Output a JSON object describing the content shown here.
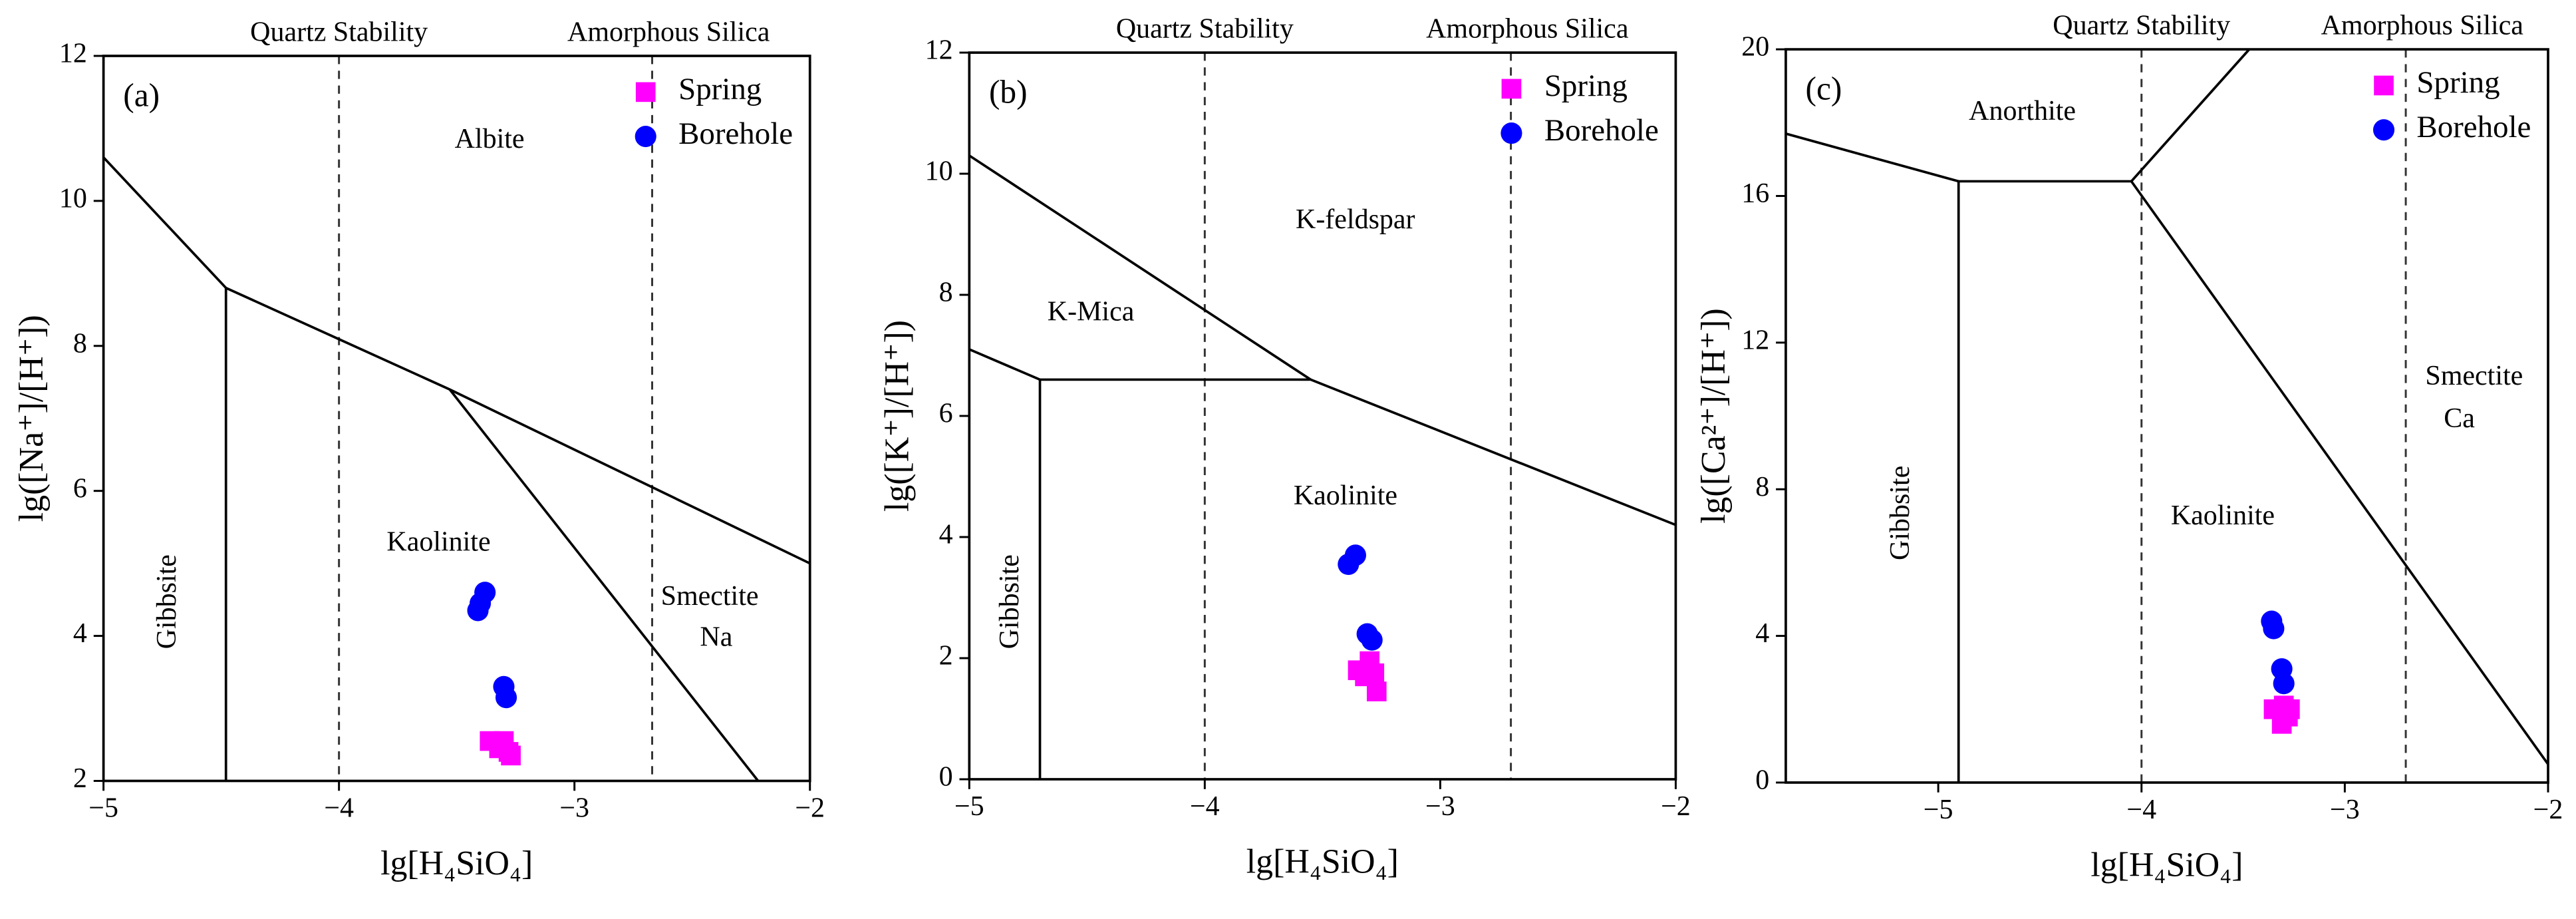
{
  "chart_data": [
    {
      "type": "scatter",
      "panel_label": "(a)",
      "xlabel": "lg[H₄SiO₄]",
      "ylabel": "lg([Na⁺]/[H⁺])",
      "xlim": [
        -5,
        -2
      ],
      "ylim": [
        2,
        12
      ],
      "xticks": [
        {
          "value": -5,
          "label": "−5"
        },
        {
          "value": -4,
          "label": "−4"
        },
        {
          "value": -3,
          "label": "−3"
        },
        {
          "value": -2,
          "label": "−2"
        }
      ],
      "yticks": [
        2,
        4,
        6,
        8,
        10,
        12
      ],
      "reference_lines": [
        {
          "x": -4,
          "label": "Quartz Stability"
        },
        {
          "x": -2.67,
          "label": "Amorphous Silica"
        }
      ],
      "boundaries": [
        {
          "x": [
            -4.48,
            -4.48
          ],
          "y": [
            2,
            8.8
          ]
        },
        {
          "x": [
            -5,
            -4.48
          ],
          "y": [
            10.6,
            8.8
          ]
        },
        {
          "x": [
            -4.48,
            -3.53,
            -2
          ],
          "y": [
            8.8,
            7.4,
            5.0
          ]
        },
        {
          "x": [
            -3.53,
            -2.22
          ],
          "y": [
            7.4,
            2
          ]
        }
      ],
      "region_labels": [
        "Albite",
        "Kaolinite",
        "Gibbsite",
        "Smectite",
        "Na"
      ],
      "legend": "upper right",
      "series": [
        {
          "name": "Spring",
          "color": "#ff00ff",
          "marker": "square",
          "x": [
            -3.36,
            -3.3,
            -3.32,
            -3.28,
            -3.27
          ],
          "y": [
            2.55,
            2.55,
            2.45,
            2.4,
            2.35
          ]
        },
        {
          "name": "Borehole",
          "color": "#0000ff",
          "marker": "circle",
          "x": [
            -3.38,
            -3.4,
            -3.41,
            -3.3,
            -3.29
          ],
          "y": [
            4.6,
            4.45,
            4.35,
            3.3,
            3.15
          ]
        }
      ]
    },
    {
      "type": "scatter",
      "panel_label": "(b)",
      "xlabel": "lg[H₄SiO₄]",
      "ylabel": "lg([K⁺]/[H⁺])",
      "xlim": [
        -5,
        -2
      ],
      "ylim": [
        0,
        12
      ],
      "xticks": [
        {
          "value": -5,
          "label": "−5"
        },
        {
          "value": -4,
          "label": "−4"
        },
        {
          "value": -3,
          "label": "−3"
        },
        {
          "value": -2,
          "label": "−2"
        }
      ],
      "yticks": [
        0,
        2,
        4,
        6,
        8,
        10,
        12
      ],
      "reference_lines": [
        {
          "x": -4,
          "label": "Quartz Stability"
        },
        {
          "x": -2.7,
          "label": "Amorphous Silica"
        }
      ],
      "boundaries": [
        {
          "x": [
            -4.7,
            -4.7
          ],
          "y": [
            0,
            6.6
          ]
        },
        {
          "x": [
            -5,
            -4.7
          ],
          "y": [
            7.1,
            6.6
          ]
        },
        {
          "x": [
            -4.7,
            -3.55,
            -2
          ],
          "y": [
            6.6,
            6.6,
            4.2
          ]
        },
        {
          "x": [
            -5,
            -3.55
          ],
          "y": [
            10.3,
            6.6
          ]
        }
      ],
      "region_labels": [
        "K-feldspar",
        "K-Mica",
        "Kaolinite",
        "Gibbsite"
      ],
      "legend": "upper right",
      "series": [
        {
          "name": "Spring",
          "color": "#ff00ff",
          "marker": "square",
          "x": [
            -3.35,
            -3.3,
            -3.28,
            -3.32,
            -3.27
          ],
          "y": [
            1.8,
            1.95,
            1.75,
            1.7,
            1.45
          ]
        },
        {
          "name": "Borehole",
          "color": "#0000ff",
          "marker": "circle",
          "x": [
            -3.36,
            -3.39,
            -3.31,
            -3.29
          ],
          "y": [
            3.7,
            3.55,
            2.4,
            2.3
          ]
        }
      ]
    },
    {
      "type": "scatter",
      "panel_label": "(c)",
      "xlabel": "lg[H₄SiO₄]",
      "ylabel": "lg([Ca²⁺]/[H⁺])",
      "xlim": [
        -5.75,
        -2
      ],
      "ylim": [
        0,
        20
      ],
      "xticks": [
        {
          "value": -5,
          "label": "−5"
        },
        {
          "value": -4,
          "label": "−4"
        },
        {
          "value": -3,
          "label": "−3"
        },
        {
          "value": -2,
          "label": "−2"
        }
      ],
      "yticks": [
        0,
        4,
        8,
        12,
        16,
        20
      ],
      "reference_lines": [
        {
          "x": -4,
          "label": "Quartz Stability"
        },
        {
          "x": -2.7,
          "label": "Amorphous Silica"
        }
      ],
      "boundaries": [
        {
          "x": [
            -4.9,
            -4.9
          ],
          "y": [
            0,
            16.4
          ]
        },
        {
          "x": [
            -5.75,
            -4.9,
            -4.05
          ],
          "y": [
            17.7,
            16.4,
            16.4
          ]
        },
        {
          "x": [
            -4.05,
            -3.47
          ],
          "y": [
            16.4,
            20
          ]
        },
        {
          "x": [
            -4.05,
            -2
          ],
          "y": [
            16.4,
            0.5
          ]
        }
      ],
      "region_labels": [
        "Anorthite",
        "Kaolinite",
        "Gibbsite",
        "Smectite",
        "Ca"
      ],
      "legend": "upper right",
      "series": [
        {
          "name": "Spring",
          "color": "#ff00ff",
          "marker": "square",
          "x": [
            -3.35,
            -3.3,
            -3.28,
            -3.31,
            -3.27
          ],
          "y": [
            2.0,
            2.1,
            1.8,
            1.6,
            2.0
          ]
        },
        {
          "name": "Borehole",
          "color": "#0000ff",
          "marker": "circle",
          "x": [
            -3.36,
            -3.35,
            -3.31,
            -3.3
          ],
          "y": [
            4.4,
            4.2,
            3.1,
            2.7
          ]
        }
      ]
    }
  ]
}
